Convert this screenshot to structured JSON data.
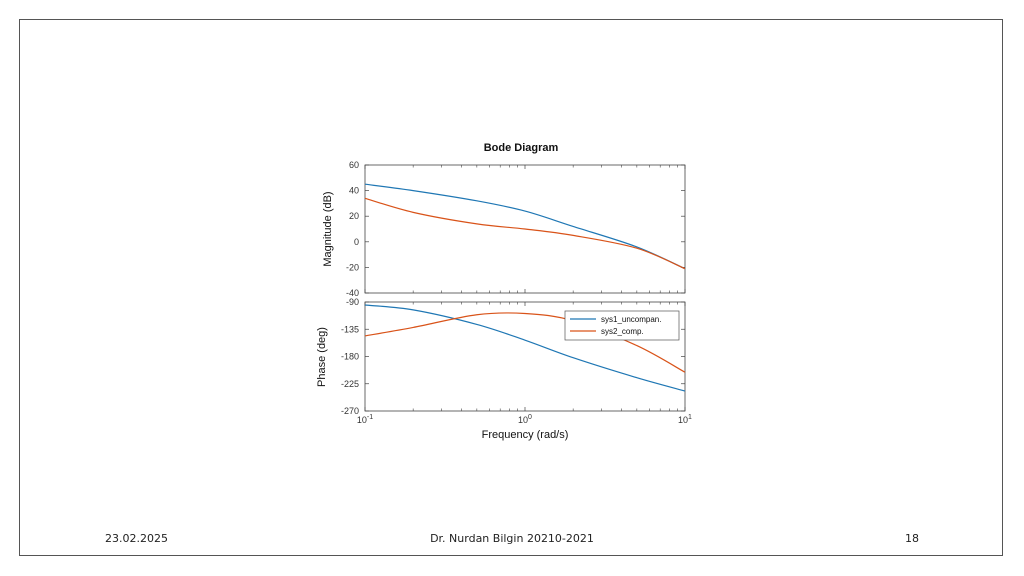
{
  "footer": {
    "date": "23.02.2025",
    "author": "Dr. Nurdan Bilgin 20210-2021",
    "page": "18"
  },
  "chart_data": {
    "type": "line",
    "title": "Bode Diagram",
    "xlabel": "Frequency  (rad/s)",
    "x_scale": "log",
    "xlim": [
      0.1,
      10
    ],
    "x_ticks": [
      {
        "value": 0.1,
        "base": "10",
        "exp": "-1"
      },
      {
        "value": 1,
        "base": "10",
        "exp": "0"
      },
      {
        "value": 10,
        "base": "10",
        "exp": "1"
      }
    ],
    "legend": {
      "position": "top-right",
      "entries": [
        "sys1_uncompan.",
        "sys2_comp."
      ]
    },
    "colors": {
      "sys1": "#1f77b4",
      "sys2": "#d95319"
    },
    "magnitude": {
      "ylabel": "Magnitude (dB)",
      "ylim": [
        -40,
        60
      ],
      "y_ticks": [
        60,
        40,
        20,
        0,
        -20,
        -40
      ],
      "series": [
        {
          "name": "sys1_uncompan.",
          "x": [
            0.1,
            0.2,
            0.5,
            1,
            2,
            5,
            10
          ],
          "y": [
            45,
            40,
            32,
            24,
            12,
            -4,
            -21
          ]
        },
        {
          "name": "sys2_comp.",
          "x": [
            0.1,
            0.2,
            0.5,
            1,
            2,
            5,
            10
          ],
          "y": [
            34,
            23,
            14,
            10,
            5,
            -5,
            -21
          ]
        }
      ]
    },
    "phase": {
      "ylabel": "Phase (deg)",
      "ylim": [
        -270,
        -90
      ],
      "y_ticks": [
        -90,
        -135,
        -180,
        -225,
        -270
      ],
      "series": [
        {
          "name": "sys1_uncompan.",
          "x": [
            0.1,
            0.2,
            0.5,
            1,
            2,
            5,
            10
          ],
          "y": [
            -95,
            -103,
            -127,
            -153,
            -182,
            -215,
            -237
          ]
        },
        {
          "name": "sys2_comp.",
          "x": [
            0.1,
            0.2,
            0.5,
            1,
            2,
            5,
            10
          ],
          "y": [
            -146,
            -132,
            -111,
            -109,
            -121,
            -162,
            -206
          ]
        }
      ]
    }
  }
}
